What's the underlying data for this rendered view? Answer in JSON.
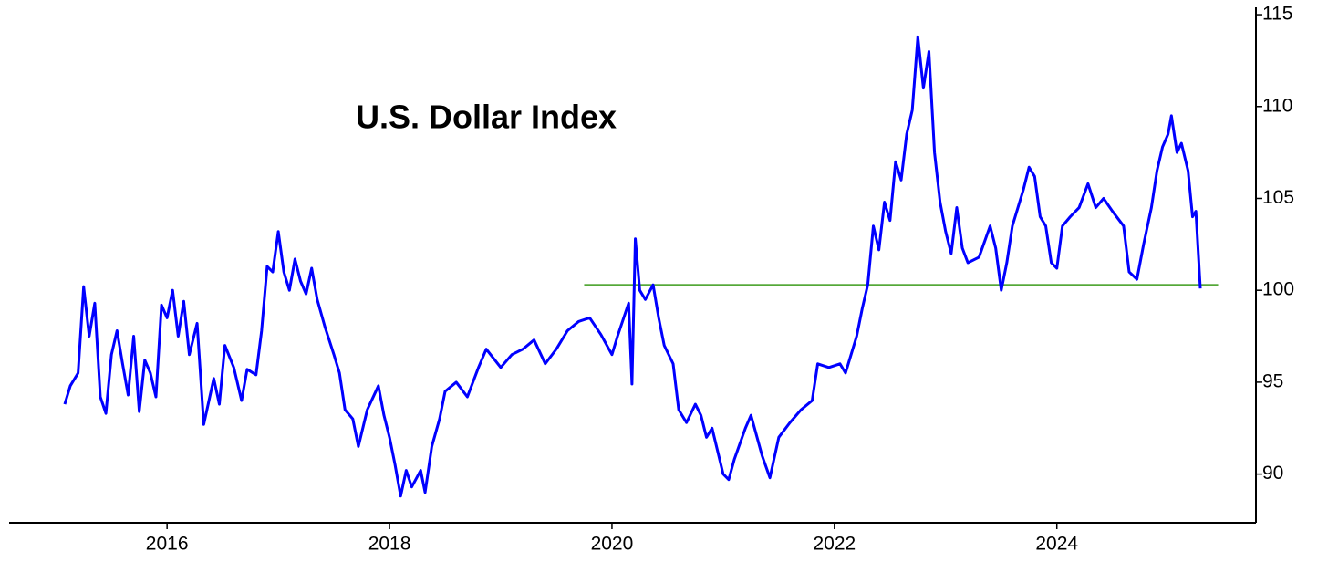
{
  "chart_data": {
    "type": "line",
    "title": "U.S. Dollar Index",
    "color": "#0000ff",
    "x": [
      2015.08,
      2015.13,
      2015.2,
      2015.25,
      2015.3,
      2015.35,
      2015.4,
      2015.45,
      2015.5,
      2015.55,
      2015.6,
      2015.65,
      2015.7,
      2015.75,
      2015.8,
      2015.85,
      2015.9,
      2015.95,
      2016.0,
      2016.05,
      2016.1,
      2016.15,
      2016.2,
      2016.27,
      2016.33,
      2016.42,
      2016.47,
      2016.52,
      2016.6,
      2016.67,
      2016.72,
      2016.8,
      2016.85,
      2016.9,
      2016.95,
      2017.0,
      2017.05,
      2017.1,
      2017.15,
      2017.2,
      2017.25,
      2017.3,
      2017.35,
      2017.42,
      2017.5,
      2017.55,
      2017.6,
      2017.67,
      2017.72,
      2017.8,
      2017.9,
      2017.95,
      2018.0,
      2018.05,
      2018.1,
      2018.15,
      2018.2,
      2018.28,
      2018.32,
      2018.38,
      2018.45,
      2018.5,
      2018.6,
      2018.7,
      2018.8,
      2018.87,
      2019.0,
      2019.1,
      2019.2,
      2019.3,
      2019.4,
      2019.5,
      2019.6,
      2019.7,
      2019.8,
      2019.9,
      2020.0,
      2020.05,
      2020.15,
      2020.18,
      2020.21,
      2020.25,
      2020.3,
      2020.37,
      2020.42,
      2020.47,
      2020.55,
      2020.6,
      2020.67,
      2020.75,
      2020.8,
      2020.85,
      2020.9,
      2021.0,
      2021.05,
      2021.1,
      2021.2,
      2021.25,
      2021.35,
      2021.42,
      2021.5,
      2021.6,
      2021.7,
      2021.8,
      2021.85,
      2021.95,
      2022.05,
      2022.1,
      2022.2,
      2022.25,
      2022.3,
      2022.35,
      2022.4,
      2022.45,
      2022.5,
      2022.55,
      2022.6,
      2022.65,
      2022.7,
      2022.75,
      2022.8,
      2022.85,
      2022.9,
      2022.95,
      2023.0,
      2023.05,
      2023.1,
      2023.15,
      2023.2,
      2023.3,
      2023.4,
      2023.45,
      2023.5,
      2023.55,
      2023.6,
      2023.7,
      2023.75,
      2023.8,
      2023.85,
      2023.9,
      2023.95,
      2024.0,
      2024.05,
      2024.12,
      2024.2,
      2024.28,
      2024.35,
      2024.42,
      2024.5,
      2024.6,
      2024.65,
      2024.72,
      2024.78,
      2024.85,
      2024.9,
      2024.95,
      2025.0,
      2025.03,
      2025.08,
      2025.12,
      2025.18,
      2025.22,
      2025.25,
      2025.29
    ],
    "values": [
      93.8,
      94.8,
      95.5,
      100.2,
      97.5,
      99.3,
      94.2,
      93.3,
      96.5,
      97.8,
      96.0,
      94.3,
      97.5,
      93.4,
      96.2,
      95.5,
      94.2,
      99.2,
      98.5,
      100.0,
      97.5,
      99.4,
      96.5,
      98.2,
      92.7,
      95.2,
      93.8,
      97.0,
      95.8,
      94.0,
      95.7,
      95.4,
      97.8,
      101.3,
      101.0,
      103.2,
      101.0,
      100.0,
      101.7,
      100.5,
      99.8,
      101.2,
      99.5,
      98.0,
      96.5,
      95.5,
      93.5,
      93.0,
      91.5,
      93.5,
      94.8,
      93.2,
      92.0,
      90.5,
      88.8,
      90.2,
      89.3,
      90.2,
      89.0,
      91.5,
      93.0,
      94.5,
      95.0,
      94.2,
      95.8,
      96.8,
      95.8,
      96.5,
      96.8,
      97.3,
      96.0,
      96.8,
      97.8,
      98.3,
      98.5,
      97.6,
      96.5,
      97.5,
      99.3,
      94.9,
      102.8,
      100.0,
      99.5,
      100.3,
      98.5,
      97.0,
      96.0,
      93.5,
      92.8,
      93.8,
      93.2,
      92.0,
      92.5,
      90.0,
      89.7,
      90.8,
      92.5,
      93.2,
      91.0,
      89.8,
      92.0,
      92.8,
      93.5,
      94.0,
      96.0,
      95.8,
      96.0,
      95.5,
      97.5,
      99.0,
      100.3,
      103.5,
      102.2,
      104.8,
      103.8,
      107.0,
      106.0,
      108.5,
      109.8,
      113.8,
      111.0,
      113.0,
      107.5,
      104.8,
      103.2,
      102.0,
      104.5,
      102.3,
      101.5,
      101.8,
      103.5,
      102.3,
      100.0,
      101.5,
      103.5,
      105.5,
      106.7,
      106.2,
      104.0,
      103.5,
      101.5,
      101.2,
      103.5,
      104.0,
      104.5,
      105.8,
      104.5,
      105.0,
      104.3,
      103.5,
      101.0,
      100.6,
      102.5,
      104.5,
      106.5,
      107.8,
      108.5,
      109.5,
      107.5,
      108.0,
      106.5,
      104.0,
      104.3,
      100.1
    ],
    "xlim": [
      2014.58,
      2025.79
    ],
    "xticks": [
      2016,
      2018,
      2020,
      2022,
      2024
    ],
    "ylim": [
      87.35,
      115.4
    ],
    "yticks": [
      90,
      95,
      100,
      105,
      110,
      115
    ],
    "hline": {
      "value": 100.3,
      "xmin": 2019.75,
      "xmax": 2025.45,
      "color": "#3c9b1c"
    },
    "title_color": "#f0250a"
  }
}
